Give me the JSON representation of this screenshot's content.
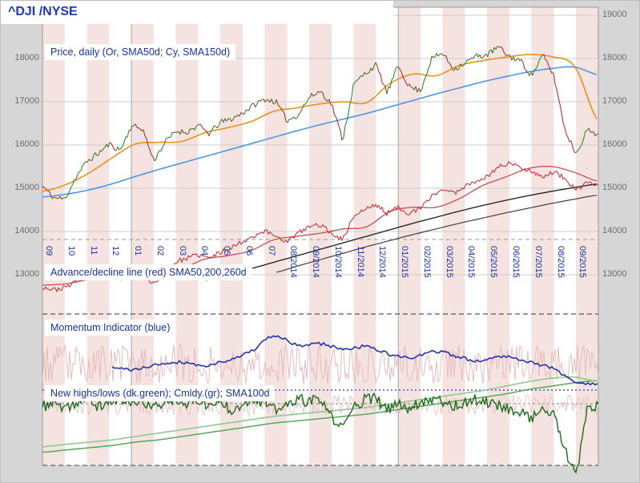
{
  "window": {
    "title": "^DJI /NYSE"
  },
  "colors": {
    "band_pink": "#f5e3e1",
    "band_white": "#ffffff",
    "grid": "#cccccc",
    "jan_line": "#a3a3a3",
    "border": "#999999",
    "axis_text": "#6b6b6b",
    "label_text": "#17349c",
    "dotted_blue": "#5353cb"
  },
  "chart_data": {
    "type": "line",
    "title": "^DJI /NYSE",
    "x_axis": {
      "months": 25,
      "tick_labels": [
        "09",
        "10",
        "11",
        "12",
        "01",
        "02",
        "03",
        "04",
        "05",
        "06",
        "07",
        "08/2014",
        "09/2014",
        "10/2014",
        "11/2014",
        "12/2014",
        "01/2015",
        "02/2015",
        "03/2015",
        "04/2015",
        "05/2015",
        "06/2015",
        "07/2015",
        "08/2015",
        "09/2015"
      ]
    },
    "y_axis": {
      "min": 13000,
      "max": 19000,
      "step": 1000,
      "left_labels": [
        "18000",
        "17000",
        "16000",
        "15000",
        "14000",
        "13000"
      ],
      "right_labels": [
        "19000",
        "18000",
        "17000",
        "16000",
        "15000",
        "14000",
        "13000"
      ]
    },
    "layout": {
      "grid": true,
      "background_bands": "monthly alternating pink/white",
      "x_labels_rotated": true
    },
    "panels": [
      {
        "id": "price",
        "label": "Price, daily (Or, SMA50d; Cy, SMA150d)"
      },
      {
        "id": "advance_decline",
        "label": "Advance/decline line (red) SMA50,200,260d"
      },
      {
        "id": "momentum",
        "label": "Momentum Indicator (blue)"
      },
      {
        "id": "new_highs_lows",
        "label": "New highs/lows (dk.green); Cmldy.(gr); SMA100d"
      }
    ],
    "series": {
      "price": {
        "name": "DJI price, daily",
        "color_up": "#2e8b2e",
        "color_down": "#b23333",
        "noise": 70,
        "values": [
          15050,
          14780,
          14750,
          15250,
          15620,
          15800,
          16020,
          15880,
          16440,
          16380,
          15640,
          16050,
          16320,
          16300,
          16450,
          16260,
          16520,
          16600,
          16740,
          16920,
          17060,
          17000,
          16560,
          16700,
          17100,
          17250,
          16950,
          16120,
          17400,
          17650,
          17850,
          17200,
          17830,
          17350,
          17250,
          18000,
          18120,
          17750,
          17900,
          18050,
          18080,
          18270,
          18040,
          17950,
          17600,
          18080,
          17600,
          16350,
          15800,
          16350,
          16250
        ]
      },
      "sma50": {
        "name": "SMA50d",
        "color": "#e8921e",
        "values": [
          14930,
          15080,
          15350,
          15700,
          16020,
          16060,
          16080,
          16280,
          16400,
          16540,
          16780,
          16860,
          16950,
          17000,
          16980,
          17420,
          17640,
          17600,
          17840,
          17950,
          18030,
          18090,
          18040,
          17800,
          16550
        ]
      },
      "sma150": {
        "name": "SMA150d",
        "color": "#4f97e0",
        "values": [
          14800,
          14860,
          14960,
          15100,
          15270,
          15430,
          15580,
          15730,
          15880,
          16030,
          16180,
          16330,
          16470,
          16600,
          16730,
          16880,
          17030,
          17180,
          17320,
          17460,
          17580,
          17690,
          17770,
          17800,
          17620
        ]
      },
      "advance_decline": {
        "name": "Advance/decline line",
        "color": "#c03a3a",
        "noise": 55,
        "values": [
          12720,
          12650,
          12700,
          12850,
          12950,
          12880,
          12980,
          12900,
          13060,
          12980,
          12800,
          13060,
          13300,
          13380,
          13460,
          13380,
          13520,
          13640,
          13760,
          13900,
          14010,
          13900,
          13760,
          13960,
          14110,
          14160,
          13960,
          13810,
          14360,
          14510,
          14620,
          14420,
          14560,
          14420,
          14520,
          14820,
          14980,
          14880,
          15050,
          15180,
          15260,
          15500,
          15580,
          15480,
          15400,
          15260,
          15380,
          15230,
          14930,
          15150,
          15060
        ]
      },
      "ad_sma50": {
        "name": "A/D SMA50d",
        "color": "#c65050",
        "values": [
          12760,
          12790,
          12890,
          12950,
          12960,
          12930,
          13120,
          13360,
          13440,
          13560,
          13810,
          13890,
          13960,
          14060,
          14110,
          14460,
          14560,
          14560,
          14760,
          15060,
          15260,
          15460,
          15500,
          15360,
          15160
        ]
      },
      "ad_sma200": {
        "name": "A/D SMA200d",
        "color": "#1a1a1a",
        "values": [
          null,
          null,
          null,
          null,
          null,
          null,
          null,
          12870,
          13000,
          13140,
          13290,
          13440,
          13590,
          13740,
          13890,
          14040,
          14190,
          14330,
          14470,
          14600,
          14720,
          14830,
          14930,
          15020,
          15100
        ]
      },
      "ad_sma260": {
        "name": "A/D SMA260d",
        "color": "#4d3a3a",
        "values": [
          null,
          null,
          null,
          null,
          null,
          null,
          null,
          null,
          null,
          null,
          13050,
          13200,
          13350,
          13500,
          13650,
          13790,
          13930,
          14060,
          14190,
          14310,
          14430,
          14540,
          14650,
          14750,
          14840
        ]
      },
      "momentum": {
        "name": "Momentum Indicator",
        "color": "#2533a8",
        "noise": 2.2,
        "units": "relative 0-100",
        "values": [
          null,
          null,
          null,
          30,
          28,
          35,
          38,
          33,
          41,
          52,
          72,
          60,
          62,
          55,
          58,
          48,
          44,
          52,
          44,
          40,
          46,
          38,
          30,
          12,
          8
        ]
      },
      "momentum_raw": {
        "name": "Momentum raw",
        "color": "#e6bcbc",
        "center": 35,
        "amplitude": 26
      },
      "new_highs_lows": {
        "name": "New highs/lows",
        "color": "#1d6b1d",
        "noise": 5,
        "units": "relative 0-100",
        "values": [
          66,
          71,
          63,
          70,
          74,
          66,
          71,
          75,
          68,
          72,
          65,
          71,
          75,
          69,
          73,
          67,
          71,
          64,
          70,
          74,
          70,
          63,
          68,
          73,
          71,
          73,
          57,
          47,
          67,
          73,
          74,
          63,
          70,
          65,
          71,
          74,
          72,
          67,
          70,
          73,
          71,
          68,
          65,
          61,
          57,
          64,
          59,
          28,
          3,
          64,
          67
        ]
      },
      "highs_raw": {
        "name": "New highs/lows raw",
        "color": "#e8c6c6",
        "center": 68,
        "amplitude": 9
      },
      "cumulative": {
        "name": "Cumulative new highs (gr)",
        "color": "#8fca8f",
        "units": "relative 0-100",
        "values": [
          31,
          33,
          35,
          37,
          40,
          43,
          46,
          49,
          52,
          55,
          58,
          60,
          62,
          64,
          66,
          69,
          72,
          75,
          78,
          81,
          85,
          89,
          92,
          93,
          89
        ]
      },
      "cml_sma100": {
        "name": "SMA100d",
        "color": "#55a855",
        "units": "relative 0-100",
        "values": [
          26,
          28,
          30,
          32,
          35,
          37,
          40,
          43,
          46,
          49,
          52,
          54,
          56,
          58,
          60,
          63,
          66,
          69,
          72,
          75,
          78,
          82,
          85,
          88,
          90
        ]
      }
    }
  }
}
